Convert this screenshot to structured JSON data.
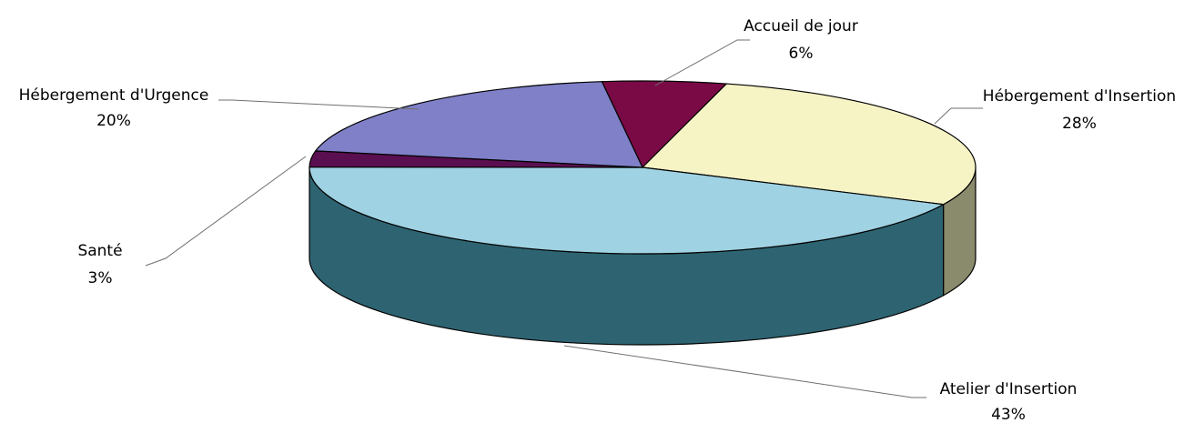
{
  "chart_data": {
    "type": "pie",
    "style": "3d",
    "title": "",
    "slices": [
      {
        "label": "Accueil de jour",
        "value": 6,
        "value_label": "6%",
        "color": "#7a0a46",
        "side_color": "#4e062c"
      },
      {
        "label": "Hébergement d'Insertion",
        "value": 28,
        "value_label": "28%",
        "color": "#f6f3c5",
        "side_color": "#8a8a6c"
      },
      {
        "label": "Atelier d'Insertion",
        "value": 43,
        "value_label": "43%",
        "color": "#9fd2e2",
        "side_color": "#2e6472"
      },
      {
        "label": "Santé",
        "value": 3,
        "value_label": "3%",
        "color": "#5a0f50",
        "side_color": "#3a0934"
      },
      {
        "label": "Hébergement d'Urgence",
        "value": 20,
        "value_label": "20%",
        "color": "#7f80c7",
        "side_color": "#4f5082"
      }
    ]
  }
}
